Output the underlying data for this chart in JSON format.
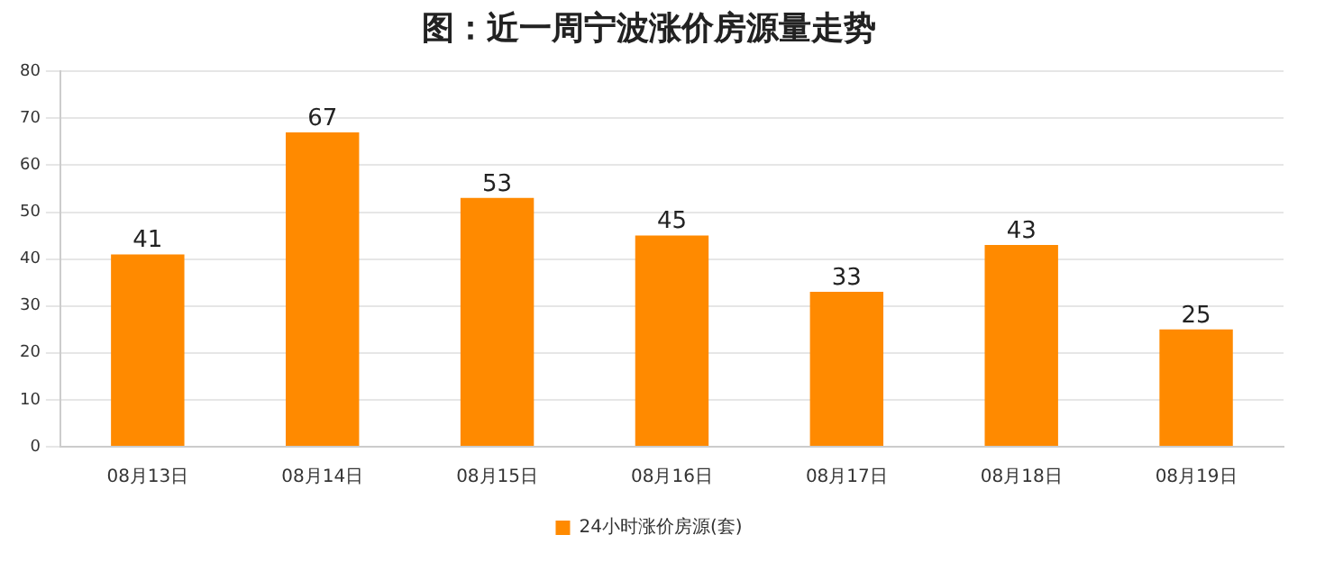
{
  "chart_data": {
    "type": "bar",
    "title": "图：近一周宁波涨价房源量走势",
    "categories": [
      "08月13日",
      "08月14日",
      "08月15日",
      "08月16日",
      "08月17日",
      "08月18日",
      "08月19日"
    ],
    "series": [
      {
        "name": "24小时涨价房源(套)",
        "color": "#ff8a00",
        "values": [
          41,
          67,
          53,
          45,
          33,
          43,
          25
        ]
      }
    ],
    "ylim": [
      0,
      80
    ],
    "yticks": [
      0,
      10,
      20,
      30,
      40,
      50,
      60,
      70,
      80
    ],
    "grid": "y",
    "legend": "bottom",
    "data_labels": true
  }
}
